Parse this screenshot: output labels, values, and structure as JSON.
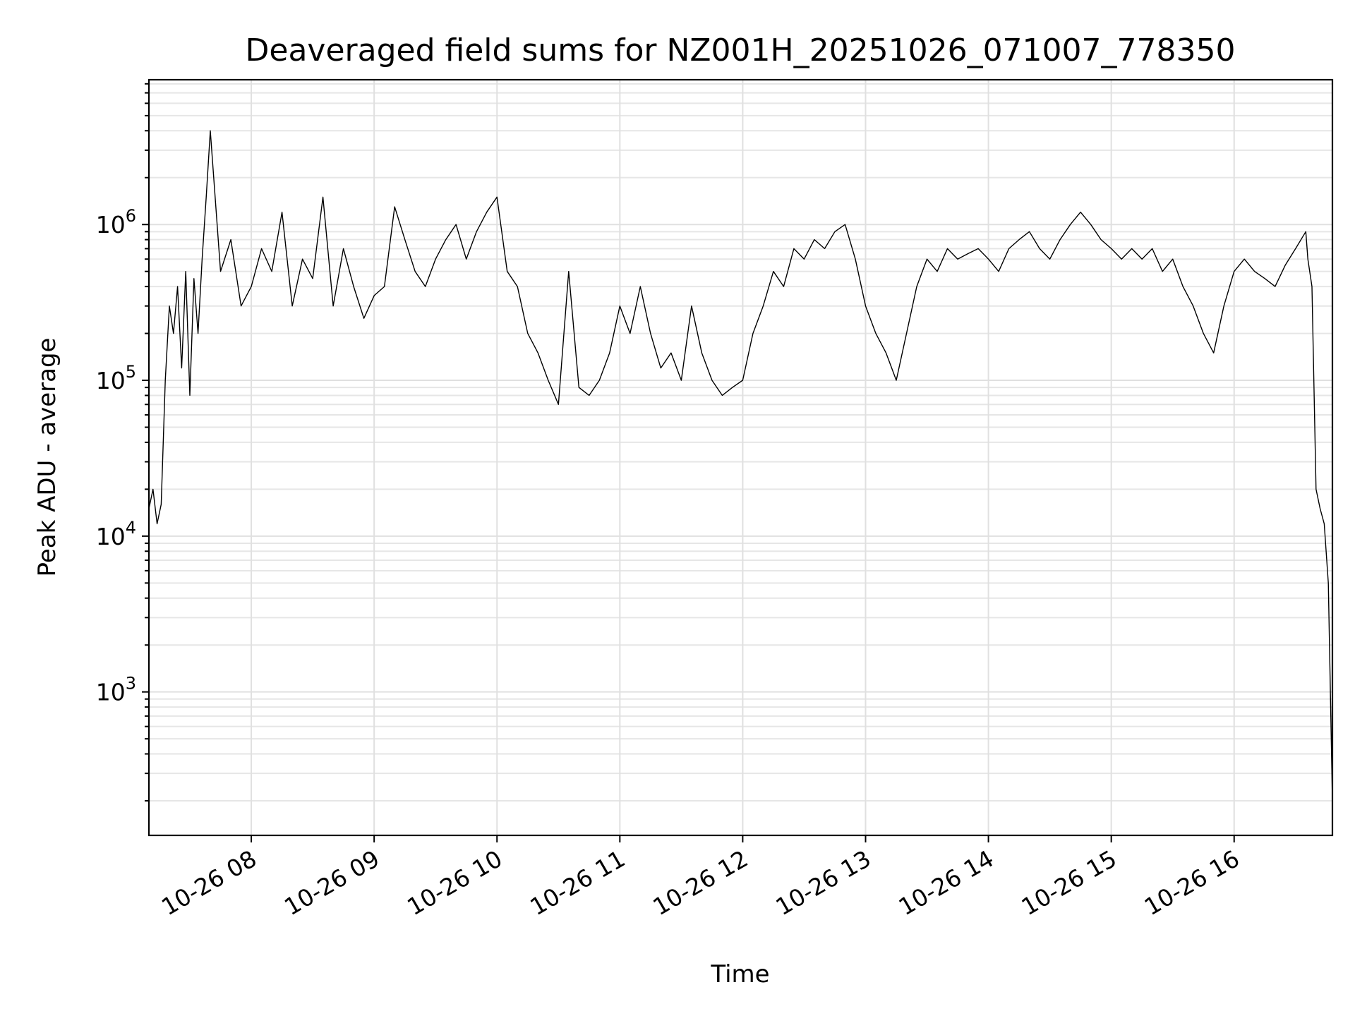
{
  "chart_data": {
    "type": "line",
    "title": "Deaveraged field sums for NZ001H_20251026_071007_778350",
    "xlabel": "Time",
    "ylabel": "Peak ADU - average",
    "yscale": "log",
    "grid": "major and minor",
    "xlim": [
      "2025-10-26 07:10",
      "2025-10-26 16:48"
    ],
    "ylim": [
      120,
      8500000
    ],
    "x_ticks": [
      "10-26 08",
      "10-26 09",
      "10-26 10",
      "10-26 11",
      "10-26 12",
      "10-26 13",
      "10-26 14",
      "10-26 15",
      "10-26 16"
    ],
    "y_ticks": [
      {
        "base": "10",
        "exp": "3",
        "value": 1000
      },
      {
        "base": "10",
        "exp": "4",
        "value": 10000
      },
      {
        "base": "10",
        "exp": "5",
        "value": 100000
      },
      {
        "base": "10",
        "exp": "6",
        "value": 1000000
      }
    ],
    "series": [
      {
        "color": "#000000",
        "x": [
          "2025-10-26 07:10",
          "2025-10-26 07:12",
          "2025-10-26 07:14",
          "2025-10-26 07:16",
          "2025-10-26 07:18",
          "2025-10-26 07:20",
          "2025-10-26 07:22",
          "2025-10-26 07:24",
          "2025-10-26 07:26",
          "2025-10-26 07:28",
          "2025-10-26 07:30",
          "2025-10-26 07:32",
          "2025-10-26 07:34",
          "2025-10-26 07:36",
          "2025-10-26 07:38",
          "2025-10-26 07:40",
          "2025-10-26 07:45",
          "2025-10-26 07:50",
          "2025-10-26 07:55",
          "2025-10-26 08:00",
          "2025-10-26 08:05",
          "2025-10-26 08:10",
          "2025-10-26 08:15",
          "2025-10-26 08:20",
          "2025-10-26 08:25",
          "2025-10-26 08:30",
          "2025-10-26 08:35",
          "2025-10-26 08:40",
          "2025-10-26 08:45",
          "2025-10-26 08:50",
          "2025-10-26 08:55",
          "2025-10-26 09:00",
          "2025-10-26 09:05",
          "2025-10-26 09:10",
          "2025-10-26 09:15",
          "2025-10-26 09:20",
          "2025-10-26 09:25",
          "2025-10-26 09:30",
          "2025-10-26 09:35",
          "2025-10-26 09:40",
          "2025-10-26 09:45",
          "2025-10-26 09:50",
          "2025-10-26 09:55",
          "2025-10-26 10:00",
          "2025-10-26 10:05",
          "2025-10-26 10:10",
          "2025-10-26 10:15",
          "2025-10-26 10:20",
          "2025-10-26 10:25",
          "2025-10-26 10:30",
          "2025-10-26 10:35",
          "2025-10-26 10:40",
          "2025-10-26 10:45",
          "2025-10-26 10:50",
          "2025-10-26 10:55",
          "2025-10-26 11:00",
          "2025-10-26 11:05",
          "2025-10-26 11:10",
          "2025-10-26 11:15",
          "2025-10-26 11:20",
          "2025-10-26 11:25",
          "2025-10-26 11:30",
          "2025-10-26 11:35",
          "2025-10-26 11:40",
          "2025-10-26 11:45",
          "2025-10-26 11:50",
          "2025-10-26 11:55",
          "2025-10-26 12:00",
          "2025-10-26 12:05",
          "2025-10-26 12:10",
          "2025-10-26 12:15",
          "2025-10-26 12:20",
          "2025-10-26 12:25",
          "2025-10-26 12:30",
          "2025-10-26 12:35",
          "2025-10-26 12:40",
          "2025-10-26 12:45",
          "2025-10-26 12:50",
          "2025-10-26 12:55",
          "2025-10-26 13:00",
          "2025-10-26 13:05",
          "2025-10-26 13:10",
          "2025-10-26 13:15",
          "2025-10-26 13:20",
          "2025-10-26 13:25",
          "2025-10-26 13:30",
          "2025-10-26 13:35",
          "2025-10-26 13:40",
          "2025-10-26 13:45",
          "2025-10-26 13:50",
          "2025-10-26 13:55",
          "2025-10-26 14:00",
          "2025-10-26 14:05",
          "2025-10-26 14:10",
          "2025-10-26 14:15",
          "2025-10-26 14:20",
          "2025-10-26 14:25",
          "2025-10-26 14:30",
          "2025-10-26 14:35",
          "2025-10-26 14:40",
          "2025-10-26 14:45",
          "2025-10-26 14:50",
          "2025-10-26 14:55",
          "2025-10-26 15:00",
          "2025-10-26 15:05",
          "2025-10-26 15:10",
          "2025-10-26 15:15",
          "2025-10-26 15:20",
          "2025-10-26 15:25",
          "2025-10-26 15:30",
          "2025-10-26 15:35",
          "2025-10-26 15:40",
          "2025-10-26 15:45",
          "2025-10-26 15:50",
          "2025-10-26 15:55",
          "2025-10-26 16:00",
          "2025-10-26 16:05",
          "2025-10-26 16:10",
          "2025-10-26 16:15",
          "2025-10-26 16:20",
          "2025-10-26 16:25",
          "2025-10-26 16:30",
          "2025-10-26 16:35",
          "2025-10-26 16:36",
          "2025-10-26 16:38",
          "2025-10-26 16:40",
          "2025-10-26 16:42",
          "2025-10-26 16:44",
          "2025-10-26 16:46",
          "2025-10-26 16:48"
        ],
        "y": [
          15000,
          20000,
          12000,
          16000,
          100000,
          300000,
          200000,
          400000,
          120000,
          500000,
          80000,
          450000,
          200000,
          600000,
          1500000,
          4000000,
          500000,
          800000,
          300000,
          400000,
          700000,
          500000,
          1200000,
          300000,
          600000,
          450000,
          1500000,
          300000,
          700000,
          400000,
          250000,
          350000,
          400000,
          1300000,
          800000,
          500000,
          400000,
          600000,
          800000,
          1000000,
          600000,
          900000,
          1200000,
          1500000,
          500000,
          400000,
          200000,
          150000,
          100000,
          70000,
          500000,
          90000,
          80000,
          100000,
          150000,
          300000,
          200000,
          400000,
          200000,
          120000,
          150000,
          100000,
          300000,
          150000,
          100000,
          80000,
          90000,
          100000,
          200000,
          300000,
          500000,
          400000,
          700000,
          600000,
          800000,
          700000,
          900000,
          1000000,
          600000,
          300000,
          200000,
          150000,
          100000,
          200000,
          400000,
          600000,
          500000,
          700000,
          600000,
          650000,
          700000,
          600000,
          500000,
          700000,
          800000,
          900000,
          700000,
          600000,
          800000,
          1000000,
          1200000,
          1000000,
          800000,
          700000,
          600000,
          700000,
          600000,
          700000,
          500000,
          600000,
          400000,
          300000,
          200000,
          150000,
          300000,
          500000,
          600000,
          500000,
          450000,
          400000,
          550000,
          700000,
          900000,
          600000,
          400000,
          20000,
          15000,
          12000,
          5000,
          200
        ]
      }
    ]
  }
}
